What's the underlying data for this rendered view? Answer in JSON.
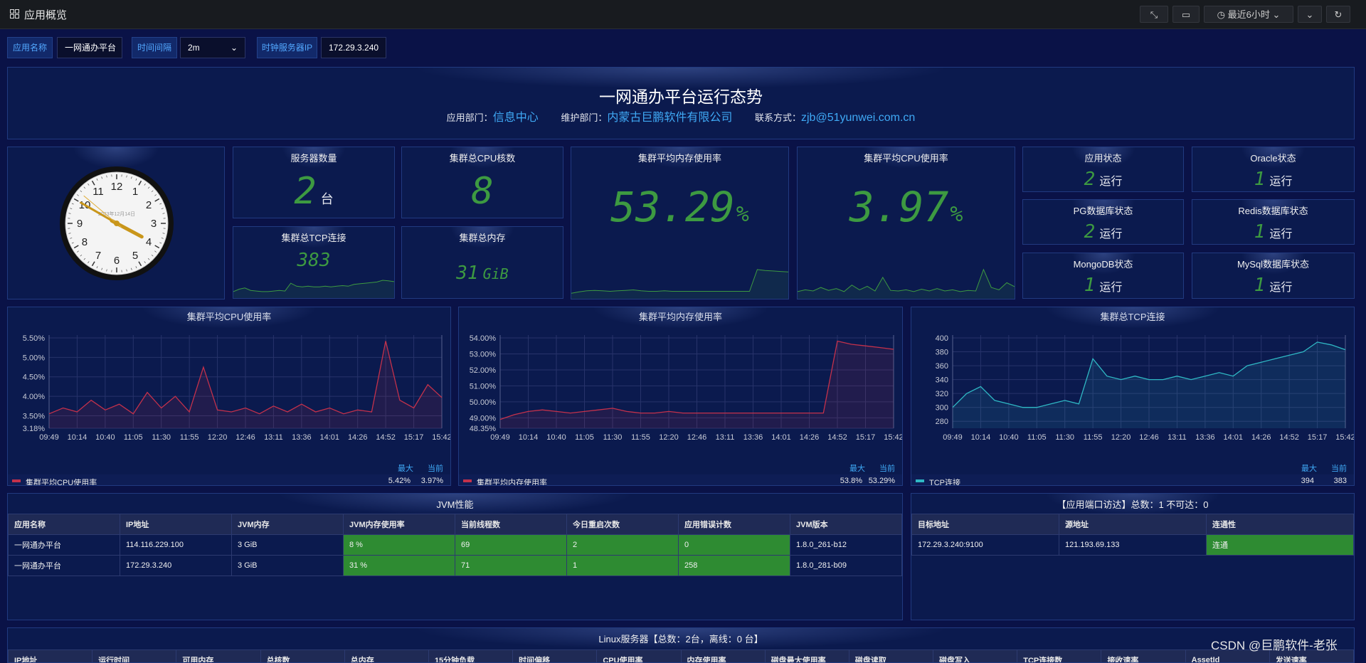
{
  "topbar": {
    "title": "应用概览",
    "time_range": "最近6小时"
  },
  "filters": [
    {
      "label": "应用名称",
      "value": "一网通办平台"
    },
    {
      "label": "时间间隔",
      "value": "2m"
    },
    {
      "label": "时钟服务器IP",
      "value": "172.29.3.240"
    }
  ],
  "header": {
    "title": "一网通办平台运行态势",
    "fields": [
      {
        "label": "应用部门：",
        "value": "信息中心"
      },
      {
        "label": "维护部门：",
        "value": "内蒙古巨鹏软件有限公司"
      },
      {
        "label": "联系方式：",
        "value": "zjb@51yunwei.com.cn"
      }
    ]
  },
  "clock": {
    "date": "2023年12月14日",
    "numbers": [
      12,
      1,
      2,
      3,
      4,
      5,
      6,
      7,
      8,
      9,
      10,
      11
    ]
  },
  "stats": [
    {
      "title": "服务器数量",
      "value": 2,
      "unit": "台"
    },
    {
      "title": "集群总CPU核数",
      "value": 8
    },
    {
      "title": "集群总TCP连接",
      "value": 383
    },
    {
      "title": "集群总内存",
      "value": 31,
      "unit": "GiB"
    },
    {
      "title": "集群平均内存使用率",
      "value": 53.29,
      "unit": "%"
    },
    {
      "title": "集群平均CPU使用率",
      "value": 3.97,
      "unit": "%"
    }
  ],
  "status": [
    {
      "title": "应用状态",
      "value": 2,
      "state": "运行"
    },
    {
      "title": "Oracle状态",
      "value": 1,
      "state": "运行"
    },
    {
      "title": "PG数据库状态",
      "value": 2,
      "state": "运行"
    },
    {
      "title": "Redis数据库状态",
      "value": 1,
      "state": "运行"
    },
    {
      "title": "MongoDB状态",
      "value": 1,
      "state": "运行"
    },
    {
      "title": "MySql数据库状态",
      "value": 1,
      "state": "运行"
    }
  ],
  "chart_data": [
    {
      "type": "line",
      "title": "集群平均CPU使用率",
      "categories": [
        "09:49",
        null,
        "10:14",
        null,
        "10:40",
        null,
        "11:05",
        null,
        "11:30",
        null,
        "11:55",
        null,
        "12:20",
        null,
        "12:46",
        null,
        "13:11",
        null,
        "13:36",
        null,
        "14:01",
        null,
        "14:26",
        null,
        "14:52",
        null,
        "15:17",
        null,
        "15:42"
      ],
      "ylim": [
        3.18,
        5.5
      ],
      "yticks": [
        {
          "value": 3.18,
          "label": "3.18%"
        },
        {
          "value": 3.5,
          "label": "3.50%"
        },
        {
          "value": 4,
          "label": "4.00%"
        },
        {
          "value": 4.5,
          "label": "4.50%"
        },
        {
          "value": 5,
          "label": "5.00%"
        },
        {
          "value": 5.5,
          "label": "5.50%"
        }
      ],
      "grid": true,
      "legend_columns": [
        "最大",
        "当前"
      ],
      "series": [
        {
          "name": "集群平均CPU使用率",
          "color": "#c4314b",
          "values": [
            3.55,
            3.7,
            3.6,
            3.9,
            3.65,
            3.8,
            3.55,
            4.1,
            3.7,
            4.0,
            3.6,
            4.75,
            3.65,
            3.6,
            3.7,
            3.55,
            3.75,
            3.6,
            3.8,
            3.6,
            3.7,
            3.55,
            3.65,
            3.6,
            5.42,
            3.9,
            3.7,
            4.3,
            3.97
          ],
          "legend_values": [
            "5.42%",
            "3.97%"
          ]
        }
      ]
    },
    {
      "type": "line",
      "title": "集群平均内存使用率",
      "categories": [
        "09:49",
        null,
        "10:14",
        null,
        "10:40",
        null,
        "11:05",
        null,
        "11:30",
        null,
        "11:55",
        null,
        "12:20",
        null,
        "12:46",
        null,
        "13:11",
        null,
        "13:36",
        null,
        "14:01",
        null,
        "14:26",
        null,
        "14:52",
        null,
        "15:17",
        null,
        "15:42"
      ],
      "ylim": [
        48.35,
        54
      ],
      "yticks": [
        {
          "value": 48.35,
          "label": "48.35%"
        },
        {
          "value": 49,
          "label": "49.00%"
        },
        {
          "value": 50,
          "label": "50.00%"
        },
        {
          "value": 51,
          "label": "51.00%"
        },
        {
          "value": 52,
          "label": "52.00%"
        },
        {
          "value": 53,
          "label": "53.00%"
        },
        {
          "value": 54,
          "label": "54.00%"
        }
      ],
      "grid": true,
      "legend_columns": [
        "最大",
        "当前"
      ],
      "series": [
        {
          "name": "集群平均内存使用率",
          "color": "#c4314b",
          "values": [
            48.9,
            49.2,
            49.4,
            49.5,
            49.4,
            49.3,
            49.4,
            49.5,
            49.6,
            49.4,
            49.3,
            49.3,
            49.4,
            49.3,
            49.3,
            49.3,
            49.3,
            49.3,
            49.3,
            49.3,
            49.3,
            49.3,
            49.3,
            49.3,
            53.8,
            53.6,
            53.5,
            53.4,
            53.29
          ],
          "legend_values": [
            "53.8%",
            "53.29%"
          ]
        }
      ]
    },
    {
      "type": "line",
      "title": "集群总TCP连接",
      "categories": [
        "09:49",
        null,
        "10:14",
        null,
        "10:40",
        null,
        "11:05",
        null,
        "11:30",
        null,
        "11:55",
        null,
        "12:20",
        null,
        "12:46",
        null,
        "13:11",
        null,
        "13:36",
        null,
        "14:01",
        null,
        "14:26",
        null,
        "14:52",
        null,
        "15:17",
        null,
        "15:42"
      ],
      "ylim": [
        270,
        400
      ],
      "yticks": [
        280,
        300,
        320,
        340,
        360,
        380,
        400
      ],
      "grid": true,
      "legend_columns": [
        "最大",
        "当前"
      ],
      "series": [
        {
          "name": "TCP连接",
          "color": "#2fb8c4",
          "values": [
            300,
            320,
            330,
            310,
            305,
            300,
            300,
            305,
            310,
            305,
            370,
            345,
            340,
            345,
            340,
            340,
            345,
            340,
            345,
            350,
            345,
            360,
            365,
            370,
            375,
            380,
            394,
            390,
            383
          ],
          "legend_values": [
            "394",
            "383"
          ]
        }
      ]
    }
  ],
  "jvm_table": {
    "title": "JVM性能",
    "columns": [
      "应用名称",
      "IP地址",
      "JVM内存",
      "JVM内存使用率",
      "当前线程数",
      "今日重启次数",
      "应用错误计数",
      "JVM版本"
    ],
    "rows": [
      [
        "一网通办平台",
        "114.116.229.100",
        "3 GiB",
        "8 %",
        "69",
        "2",
        "0",
        "1.8.0_261-b12"
      ],
      [
        "一网通办平台",
        "172.29.3.240",
        "3 GiB",
        "31 %",
        "71",
        "1",
        "258",
        "1.8.0_281-b09"
      ]
    ],
    "highlight_columns": [
      3,
      4,
      5,
      6
    ],
    "highlight_color": "#2e8b32"
  },
  "port_table": {
    "title": "【应用端口访达】总数：1 不可达：0",
    "columns": [
      "目标地址",
      "源地址",
      "连通性"
    ],
    "rows": [
      [
        "172.29.3.240:9100",
        "121.193.69.133",
        "连通"
      ]
    ],
    "highlight_columns": [
      2
    ],
    "highlight_color": "#2e8b32"
  },
  "linux_panel": {
    "title": "Linux服务器【总数：2台，离线：0 台】",
    "columns": [
      "IP地址",
      "运行时间",
      "可用内存",
      "总核数",
      "总内存",
      "15分钟负载",
      "时间偏移",
      "CPU使用率",
      "内存使用率",
      "磁盘最大使用率",
      "磁盘读取",
      "磁盘写入",
      "TCP连接数",
      "接收速率",
      "AssetId",
      "发送速率"
    ]
  },
  "watermark": "CSDN @巨鹏软件-老张"
}
